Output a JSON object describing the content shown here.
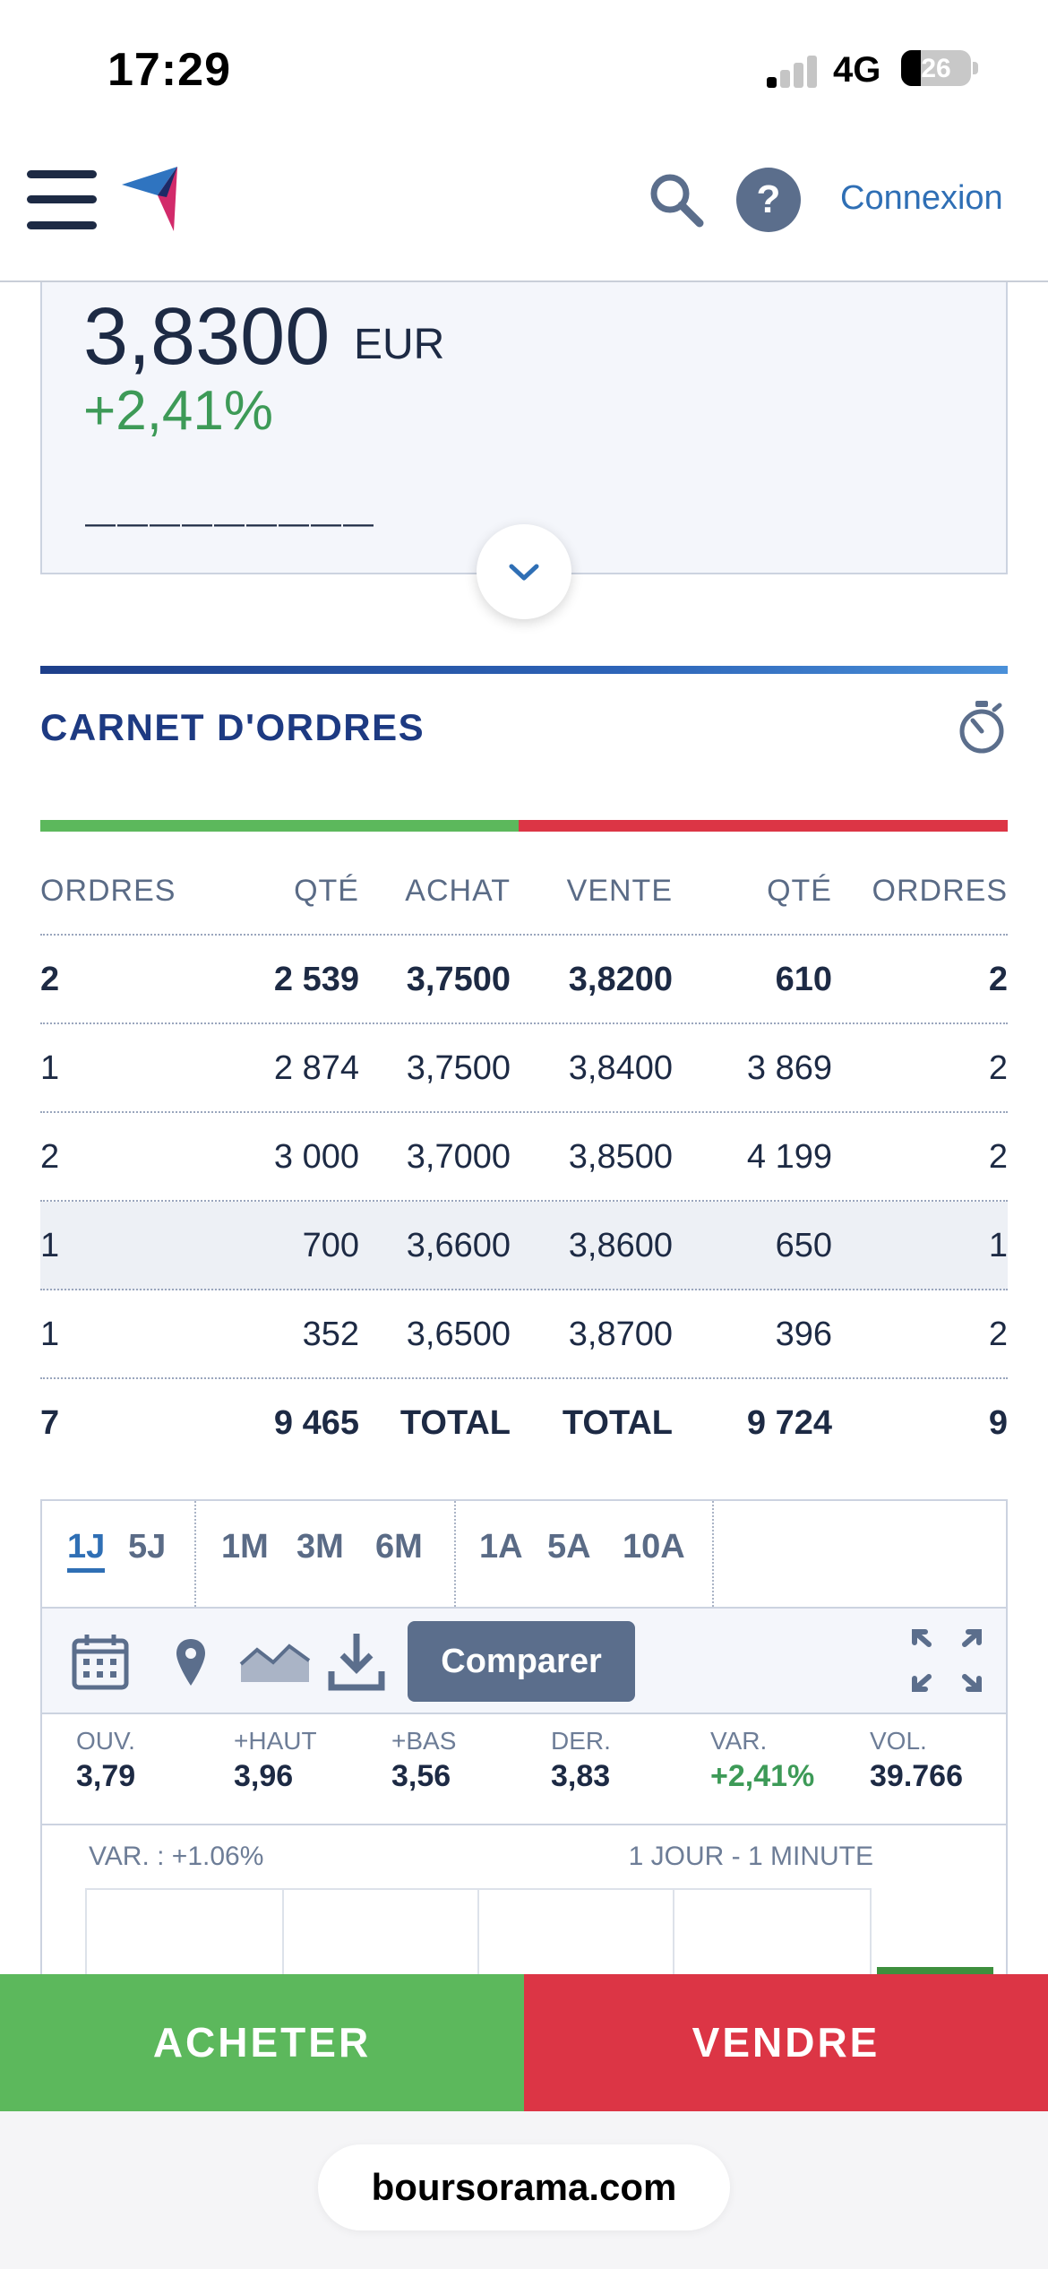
{
  "status_bar": {
    "time": "17:29",
    "network": "4G",
    "battery": "26"
  },
  "header": {
    "login_label": "Connexion",
    "help_label": "?"
  },
  "quote": {
    "price": "3,8300",
    "currency": "EUR",
    "variation": "+2,41%",
    "cut_text": "—————————"
  },
  "order_book": {
    "title": "CARNET D'ORDRES",
    "buy_share": 0.494,
    "columns": [
      "ORDRES",
      "QTÉ",
      "ACHAT",
      "VENTE",
      "QTÉ",
      "ORDRES"
    ],
    "rows": [
      [
        "2",
        "2 539",
        "3,7500",
        "3,8200",
        "610",
        "2"
      ],
      [
        "1",
        "2 874",
        "3,7500",
        "3,8400",
        "3 869",
        "2"
      ],
      [
        "2",
        "3 000",
        "3,7000",
        "3,8500",
        "4 199",
        "2"
      ],
      [
        "1",
        "700",
        "3,6600",
        "3,8600",
        "650",
        "1"
      ],
      [
        "1",
        "352",
        "3,6500",
        "3,8700",
        "396",
        "2"
      ]
    ],
    "total": [
      "7",
      "9 465",
      "TOTAL",
      "TOTAL",
      "9 724",
      "9"
    ]
  },
  "chart_widget": {
    "periods": [
      [
        "1J",
        "5J"
      ],
      [
        "1M",
        "3M",
        "6M"
      ],
      [
        "1A",
        "5A",
        "10A"
      ]
    ],
    "active_period": "1J",
    "compare_label": "Comparer",
    "stats": [
      {
        "label": "OUV.",
        "value": "3,79"
      },
      {
        "label": "+HAUT",
        "value": "3,96"
      },
      {
        "label": "+BAS",
        "value": "3,56"
      },
      {
        "label": "DER.",
        "value": "3,83"
      },
      {
        "label": "VAR.",
        "value": "+2,41%"
      },
      {
        "label": "VOL.",
        "value": "39.766"
      }
    ],
    "graph_variation": "VAR. : +1.06%",
    "graph_period": "1 JOUR - 1 MINUTE"
  },
  "actions": {
    "buy_label": "ACHETER",
    "sell_label": "VENDRE"
  },
  "browser": {
    "url": "boursorama.com"
  },
  "colors": {
    "primary": "#1d3a82",
    "link": "#2f6fb5",
    "positive": "#3d9a57",
    "buy": "#5cb85c",
    "sell": "#dc3545"
  }
}
